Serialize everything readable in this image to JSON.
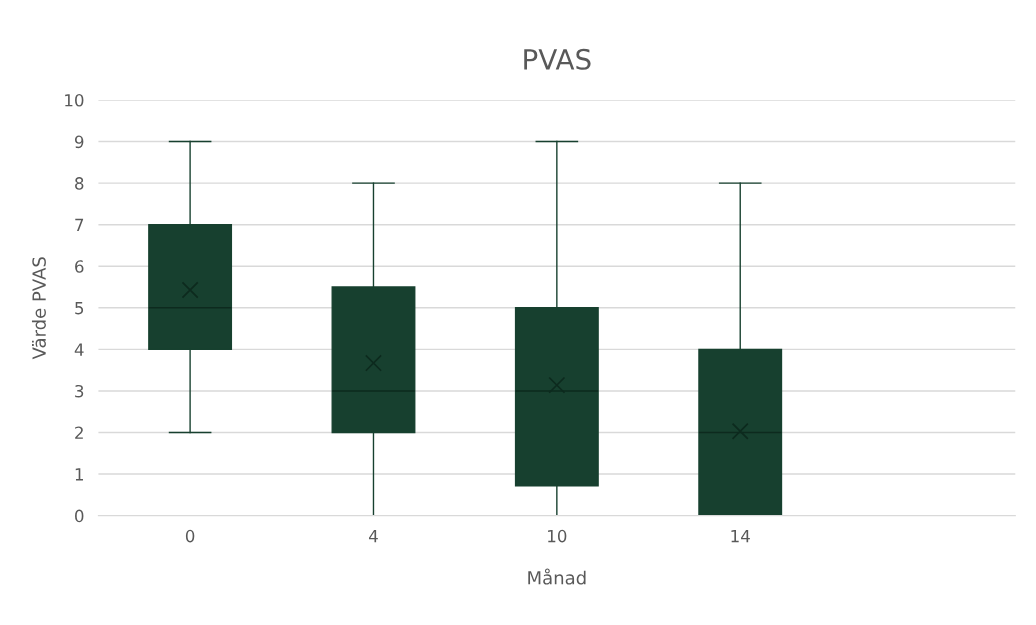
{
  "chart_data": {
    "type": "box",
    "title": "PVAS",
    "xlabel": "Månad",
    "ylabel": "Värde PVAS",
    "categories": [
      "0",
      "4",
      "10",
      "14",
      null
    ],
    "series": [
      {
        "color": "#17402f",
        "boxes": [
          {
            "low": 2,
            "q1": 4,
            "median": 5,
            "q3": 7,
            "high": 9,
            "mean": 5.43
          },
          {
            "low": 0,
            "q1": 2,
            "median": 3,
            "q3": 5.5,
            "high": 8,
            "mean": 3.67
          },
          {
            "low": 0,
            "q1": 0.72,
            "median": 3,
            "q3": 5,
            "high": 9,
            "mean": 3.14
          },
          {
            "low": 0,
            "q1": 0,
            "median": 2,
            "q3": 4,
            "high": 8,
            "mean": 2.03
          },
          null
        ]
      }
    ],
    "ylim": [
      0,
      10
    ],
    "yticks": [
      0,
      1,
      2,
      3,
      4,
      5,
      6,
      7,
      8,
      9,
      10
    ],
    "grid": "y",
    "marker": "cross"
  }
}
